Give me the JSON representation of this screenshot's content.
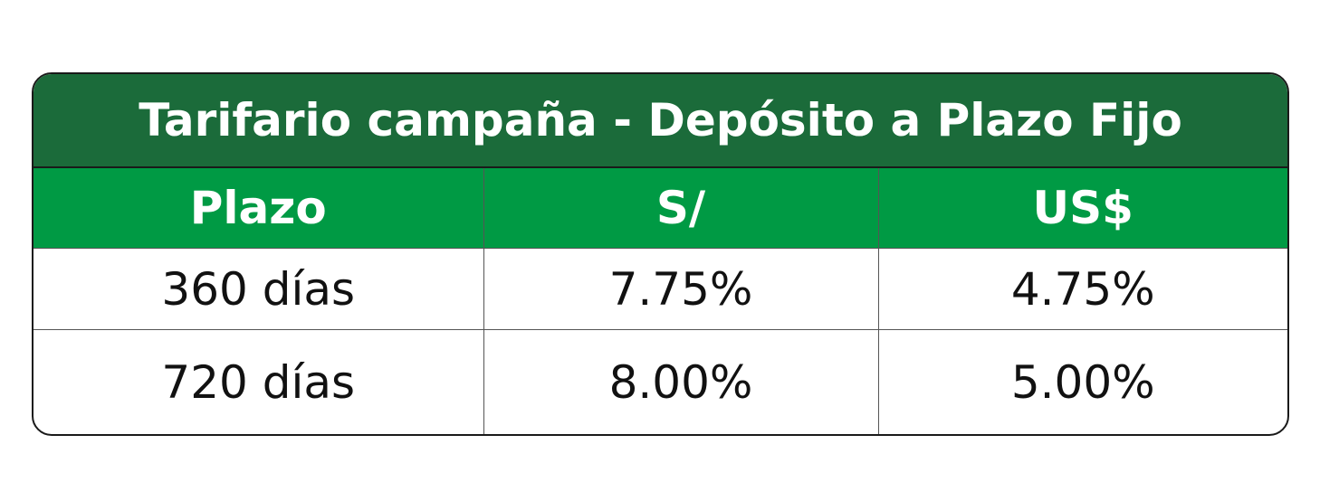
{
  "header": {
    "title": "Tarifario campaña - Depósito a Plazo Fijo"
  },
  "table": {
    "columns": [
      "Plazo",
      "S/",
      "US$"
    ],
    "rows": [
      [
        "360 días",
        "7.75%",
        "4.75%"
      ],
      [
        "720 días",
        "8.00%",
        "5.00%"
      ]
    ]
  }
}
